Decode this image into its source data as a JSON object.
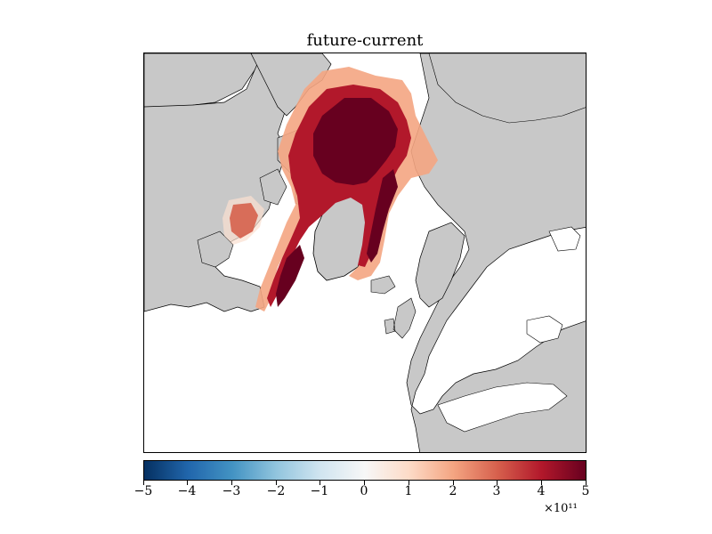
{
  "title": "future-current",
  "colorbar": {
    "ticks": [
      "−5",
      "−4",
      "−3",
      "−2",
      "−1",
      "0",
      "1",
      "2",
      "3",
      "4",
      "5"
    ],
    "multiplier": "×10¹¹",
    "colormap": [
      "#053061",
      "#2166ac",
      "#4393c3",
      "#92c5de",
      "#d1e5f0",
      "#f7f7f7",
      "#fddbc7",
      "#f4a582",
      "#d6604d",
      "#b2182b",
      "#67001f"
    ]
  },
  "map": {
    "projection": "polar stereographic (north)",
    "land_color": "#c8c8c8",
    "ocean_color": "#ffffff",
    "coastline_color": "#000000"
  }
}
